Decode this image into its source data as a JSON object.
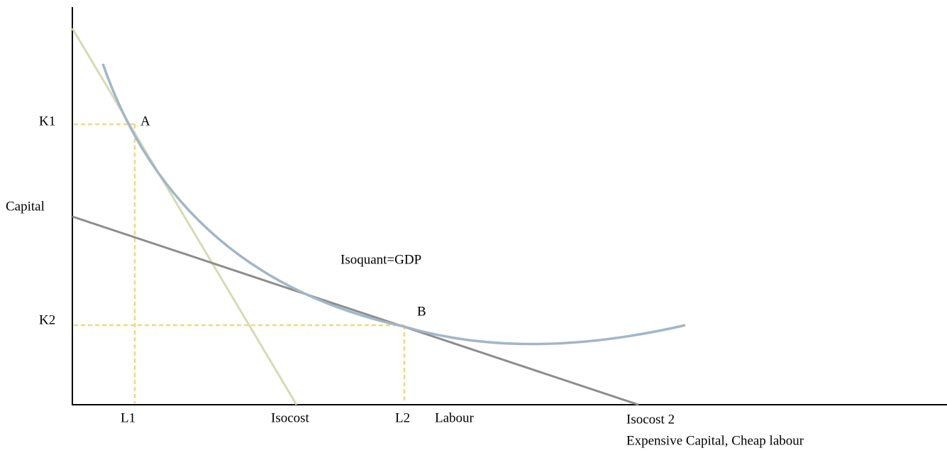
{
  "axes": {
    "y_label": "Capital",
    "x_label": "Labour"
  },
  "points": [
    {
      "label": "A"
    },
    {
      "label": "B"
    }
  ],
  "y_markers": [
    "K1",
    "K2"
  ],
  "x_markers": [
    "L1",
    "L2"
  ],
  "curves": {
    "isoquant": "Isoquant=GDP",
    "isocost_1": "Isocost",
    "isocost_2": "Isocost 2",
    "isocost_2_note": "Expensive Capital, Cheap labour"
  }
}
